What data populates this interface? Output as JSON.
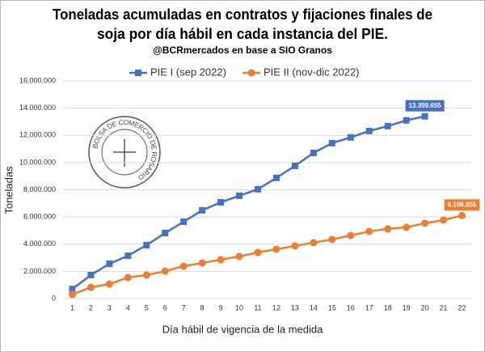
{
  "chart_data": {
    "type": "line",
    "title": [
      "Toneladas acumuladas en contratos y fijaciones finales de",
      "soja por día hábil en cada instancia del PIE."
    ],
    "subtitle": "@BCRmercados en base a SIO Granos",
    "logo_text": "BOLSA DE COMERCIO DE ROSARIO",
    "x_label": "Día hábil de vigencia de la medida",
    "y_label": "Toneladas",
    "categories": [
      1,
      2,
      3,
      4,
      5,
      6,
      7,
      8,
      9,
      10,
      11,
      12,
      13,
      14,
      15,
      16,
      17,
      18,
      19,
      20,
      21,
      22
    ],
    "series": [
      {
        "name": "PIE I (sep 2022)",
        "color": "#4472c4",
        "marker": "square",
        "values": [
          700000,
          1730000,
          2560000,
          3150000,
          3930000,
          4820000,
          5650000,
          6490000,
          7080000,
          7560000,
          8040000,
          8870000,
          9760000,
          10710000,
          11430000,
          11850000,
          12320000,
          12680000,
          13100000,
          13399655,
          null,
          null
        ],
        "value_labels": [
          null,
          null,
          null,
          null,
          null,
          null,
          null,
          null,
          null,
          null,
          null,
          null,
          null,
          null,
          null,
          null,
          null,
          null,
          null,
          "13.399.655",
          null,
          null
        ]
      },
      {
        "name": "PIE II (nov-dic 2022)",
        "color": "#ed7d31",
        "marker": "circle",
        "values": [
          300000,
          830000,
          1070000,
          1550000,
          1730000,
          2020000,
          2380000,
          2620000,
          2860000,
          3100000,
          3390000,
          3630000,
          3870000,
          4110000,
          4350000,
          4640000,
          4940000,
          5120000,
          5240000,
          5540000,
          5770000,
          6106855
        ],
        "value_labels": [
          null,
          null,
          null,
          null,
          null,
          null,
          null,
          null,
          null,
          null,
          null,
          null,
          null,
          null,
          null,
          null,
          null,
          null,
          null,
          null,
          null,
          "6.106.855"
        ]
      }
    ],
    "ylim": [
      0,
      16000000
    ],
    "yticks": [
      0,
      {
        "value": 2000000,
        "label": "2.000.000"
      },
      {
        "value": 4000000,
        "label": "4.000.000"
      },
      {
        "value": 6000000,
        "label": "6.000.000"
      },
      {
        "value": 8000000,
        "label": "8.000.000"
      },
      {
        "value": 10000000,
        "label": "10.000.000"
      },
      {
        "value": 12000000,
        "label": "12.000.000"
      },
      {
        "value": 14000000,
        "label": "14.000.000"
      },
      {
        "value": 16000000,
        "label": "16.000.000"
      }
    ],
    "grid": true
  }
}
